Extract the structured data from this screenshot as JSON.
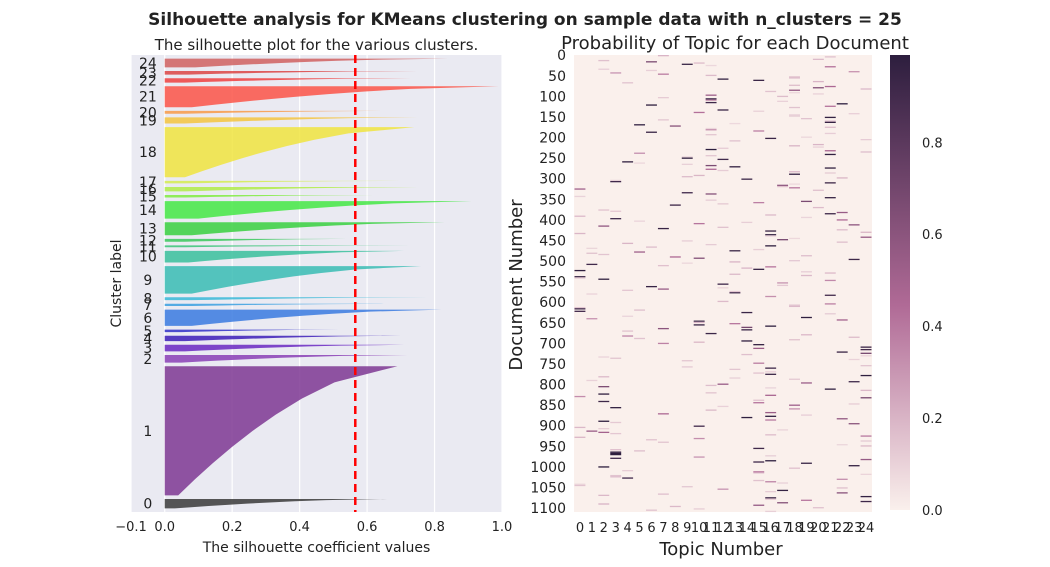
{
  "suptitle": "Silhouette analysis for KMeans clustering on sample data with n_clusters = 25",
  "chart_data": [
    {
      "type": "bar",
      "title": "The silhouette plot for the various clusters.",
      "xlabel": "The silhouette coefficient values",
      "ylabel": "Cluster label",
      "xlim": [
        -0.1,
        1.0
      ],
      "xticks": [
        "−0.1",
        "0.0",
        "0.2",
        "0.4",
        "0.6",
        "0.8",
        "1.0"
      ],
      "xtick_values": [
        -0.1,
        0.0,
        0.2,
        0.4,
        0.6,
        0.8,
        1.0
      ],
      "average_silhouette": 0.565,
      "average_line_color": "#ff0000",
      "clusters": [
        {
          "label": "0",
          "size": 26,
          "max": 0.66,
          "min": 0.03,
          "color": "#3a3a3a"
        },
        {
          "label": "1",
          "size": 356,
          "max": 0.69,
          "min": 0.04,
          "color": "#7e3793"
        },
        {
          "label": "2",
          "size": 21,
          "max": 0.72,
          "min": 0.05,
          "color": "#8a3fb6"
        },
        {
          "label": "3",
          "size": 18,
          "max": 0.71,
          "min": 0.06,
          "color": "#6a28c2"
        },
        {
          "label": "4",
          "size": 15,
          "max": 0.7,
          "min": 0.06,
          "color": "#3c1db8"
        },
        {
          "label": "5",
          "size": 7,
          "max": 0.52,
          "min": 0.05,
          "color": "#3030c8"
        },
        {
          "label": "6",
          "size": 45,
          "max": 0.82,
          "min": 0.08,
          "color": "#3a7ae0"
        },
        {
          "label": "7",
          "size": 6,
          "max": 0.65,
          "min": 0.08,
          "color": "#3aa0e0"
        },
        {
          "label": "8",
          "size": 8,
          "max": 0.78,
          "min": 0.08,
          "color": "#38b8d8"
        },
        {
          "label": "9",
          "size": 76,
          "max": 0.76,
          "min": 0.08,
          "color": "#38bcb4"
        },
        {
          "label": "10",
          "size": 32,
          "max": 0.71,
          "min": 0.07,
          "color": "#38c09c"
        },
        {
          "label": "11",
          "size": 5,
          "max": 0.73,
          "min": 0.06,
          "color": "#38c478"
        },
        {
          "label": "12",
          "size": 8,
          "max": 0.54,
          "min": 0.06,
          "color": "#3ac85c"
        },
        {
          "label": "13",
          "size": 36,
          "max": 0.83,
          "min": 0.08,
          "color": "#38d040"
        },
        {
          "label": "14",
          "size": 48,
          "max": 0.91,
          "min": 0.1,
          "color": "#44e844"
        },
        {
          "label": "15",
          "size": 7,
          "max": 0.62,
          "min": 0.06,
          "color": "#80ec40"
        },
        {
          "label": "16",
          "size": 12,
          "max": 0.75,
          "min": 0.06,
          "color": "#b0ec48"
        },
        {
          "label": "17",
          "size": 7,
          "max": 0.7,
          "min": 0.06,
          "color": "#d4ec50"
        },
        {
          "label": "18",
          "size": 138,
          "max": 0.74,
          "min": 0.06,
          "color": "#f0e440"
        },
        {
          "label": "19",
          "size": 17,
          "max": 0.75,
          "min": 0.06,
          "color": "#f4c440"
        },
        {
          "label": "20",
          "size": 8,
          "max": 0.67,
          "min": 0.06,
          "color": "#f89a48"
        },
        {
          "label": "21",
          "size": 58,
          "max": 0.99,
          "min": 0.08,
          "color": "#fc5448"
        },
        {
          "label": "22",
          "size": 12,
          "max": 0.73,
          "min": 0.06,
          "color": "#ee4040"
        },
        {
          "label": "23",
          "size": 10,
          "max": 0.75,
          "min": 0.07,
          "color": "#dc4444"
        },
        {
          "label": "24",
          "size": 24,
          "max": 0.84,
          "min": 0.09,
          "color": "#d06060"
        }
      ]
    },
    {
      "type": "heatmap",
      "title": "Probability of Topic for each Document",
      "xlabel": "Topic Number",
      "ylabel": "Document Number",
      "xticks": [
        "0",
        "1",
        "2",
        "3",
        "4",
        "5",
        "6",
        "7",
        "8",
        "9",
        "10",
        "11",
        "12",
        "13",
        "14",
        "15",
        "16",
        "17",
        "18",
        "19",
        "20",
        "21",
        "22",
        "23",
        "24"
      ],
      "yticks": [
        "0",
        "50",
        "100",
        "150",
        "200",
        "250",
        "300",
        "350",
        "400",
        "450",
        "500",
        "550",
        "600",
        "650",
        "700",
        "750",
        "800",
        "850",
        "900",
        "950",
        "1000",
        "1050",
        "1100"
      ],
      "n_docs": 1110,
      "n_topics": 25,
      "colorbar_ticks": [
        "0.0",
        "0.2",
        "0.4",
        "0.6",
        "0.8"
      ],
      "colorbar_tick_values": [
        0.0,
        0.2,
        0.4,
        0.6,
        0.8
      ],
      "vmin": 0.0,
      "vmax": 0.99,
      "cmap_low": "#faf0ec",
      "cmap_mid": "#b06a96",
      "cmap_high": "#2d1e3e"
    }
  ]
}
